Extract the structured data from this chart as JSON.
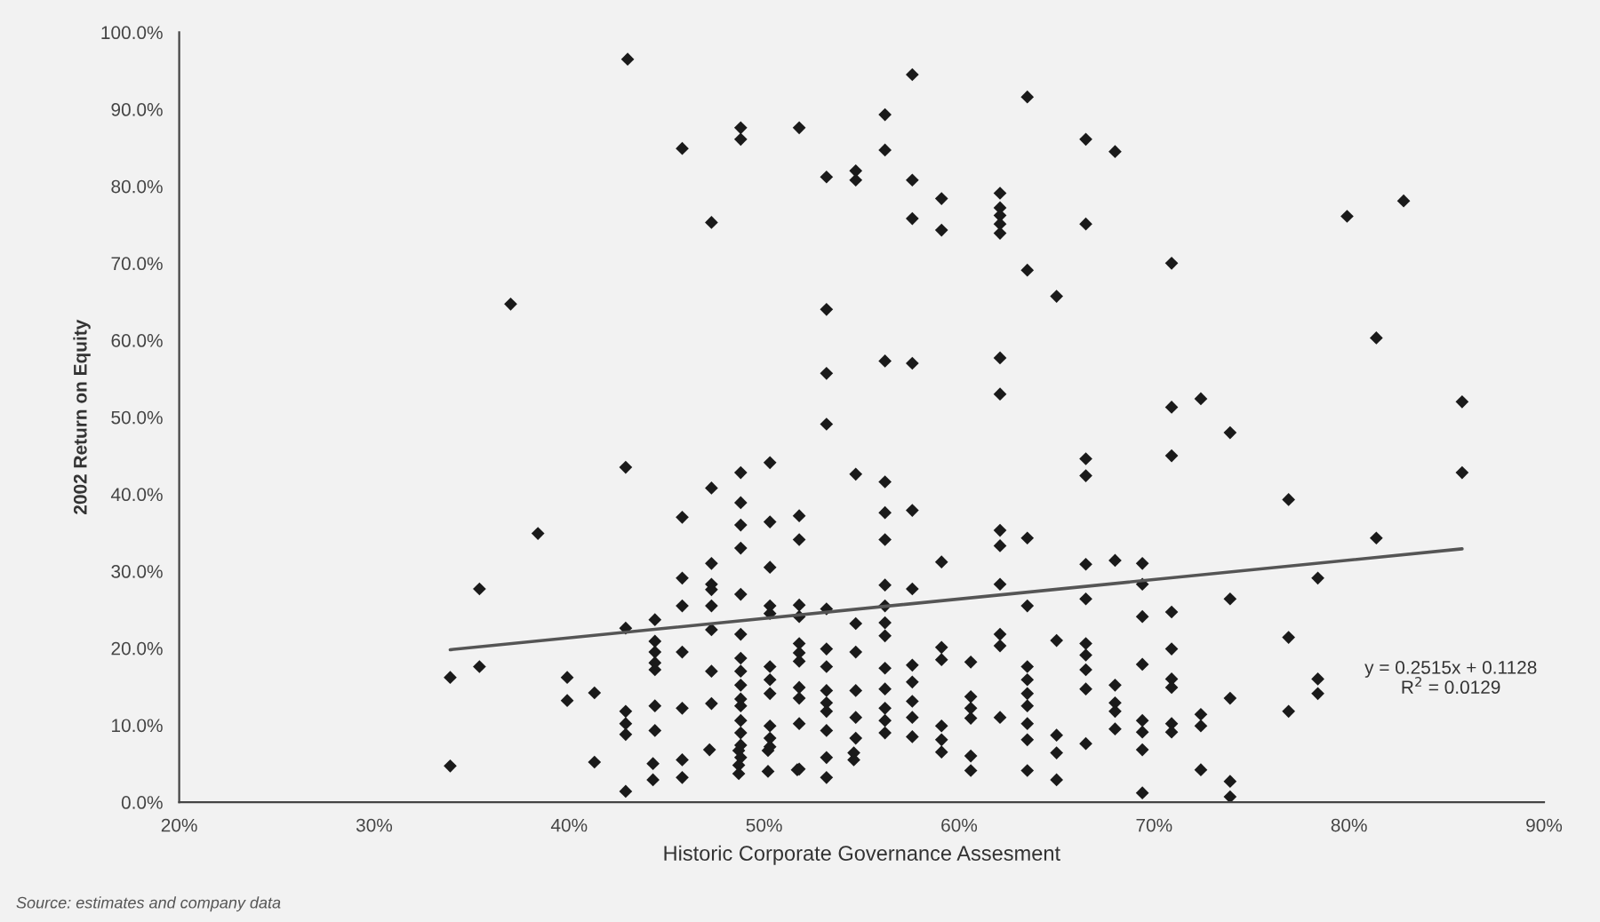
{
  "chart_data": {
    "type": "scatter",
    "xlabel": "Historic Corporate Governance Assesment",
    "ylabel": "2002 Return on Equity",
    "annotations": [
      "y = 0.2515x + 0.1128\nR$^{2}$ = 0.0129",
      "Source: estimates and company data"
    ],
    "xlim": [
      20,
      90
    ],
    "ylim": [
      0,
      100
    ],
    "xticks": [
      {
        "value": 20,
        "label": "20%"
      },
      {
        "value": 30,
        "label": "30%"
      },
      {
        "value": 40,
        "label": "40%"
      },
      {
        "value": 50,
        "label": "50%"
      },
      {
        "value": 60,
        "label": "60%"
      },
      {
        "value": 70,
        "label": "70%"
      },
      {
        "value": 80,
        "label": "80%"
      },
      {
        "value": 90,
        "label": "90%"
      }
    ],
    "yticks": [
      {
        "value": 0,
        "label": "0.0%"
      },
      {
        "value": 10,
        "label": "10.0%"
      },
      {
        "value": 20,
        "label": "20.0%"
      },
      {
        "value": 30,
        "label": "30.0%"
      },
      {
        "value": 40,
        "label": "40.0%"
      },
      {
        "value": 50,
        "label": "50.0%"
      },
      {
        "value": 60,
        "label": "60.0%"
      },
      {
        "value": 70,
        "label": "70.0%"
      },
      {
        "value": 80,
        "label": "80.0%"
      },
      {
        "value": 90,
        "label": "90.0%"
      },
      {
        "value": 100,
        "label": "100.0%"
      }
    ],
    "grid": false,
    "legend": false,
    "series": [
      {
        "color": "#1a1a1a",
        "marker": "diamond",
        "x": [
          43.0,
          37.0,
          42.9,
          38.4,
          35.4,
          42.9,
          33.9,
          35.4,
          39.9,
          39.9,
          41.3,
          42.9,
          42.9,
          42.9,
          33.9,
          41.3,
          42.9,
          44.3,
          44.3,
          45.8,
          45.8,
          47.2,
          48.7,
          48.7,
          48.7,
          50.2,
          50.2,
          51.7,
          53.2,
          53.2,
          54.6,
          54.6,
          44.4,
          44.4,
          44.4,
          44.4,
          44.4,
          44.4,
          44.4,
          45.8,
          45.8,
          45.8,
          45.8,
          45.8,
          45.8,
          47.3,
          47.3,
          47.3,
          47.3,
          47.3,
          47.3,
          47.3,
          47.3,
          47.3,
          48.8,
          48.8,
          48.8,
          48.8,
          48.8,
          48.8,
          48.8,
          48.8,
          48.8,
          48.8,
          48.8,
          48.8,
          48.8,
          48.8,
          48.8,
          48.8,
          48.8,
          50.3,
          50.3,
          50.3,
          50.3,
          50.3,
          50.3,
          50.3,
          50.3,
          50.3,
          50.3,
          50.3,
          51.8,
          51.8,
          51.8,
          51.8,
          51.8,
          51.8,
          51.8,
          51.8,
          51.8,
          51.8,
          51.8,
          51.8,
          53.2,
          53.2,
          53.2,
          53.2,
          53.2,
          53.2,
          53.2,
          53.2,
          53.2,
          53.2,
          53.2,
          54.7,
          54.7,
          54.7,
          54.7,
          54.7,
          54.7,
          54.7,
          54.7,
          56.2,
          56.2,
          56.2,
          56.2,
          56.2,
          56.2,
          56.2,
          56.2,
          56.2,
          56.2,
          56.2,
          56.2,
          56.2,
          56.2,
          56.2,
          57.6,
          57.6,
          57.6,
          57.6,
          57.6,
          57.6,
          57.6,
          57.6,
          57.6,
          57.6,
          57.6,
          59.1,
          59.1,
          59.1,
          59.1,
          59.1,
          59.1,
          59.1,
          59.1,
          60.6,
          60.6,
          60.6,
          60.6,
          60.6,
          60.6,
          62.1,
          62.1,
          62.1,
          62.1,
          62.1,
          62.1,
          62.1,
          62.1,
          62.1,
          62.1,
          62.1,
          62.1,
          62.1,
          63.5,
          63.5,
          63.5,
          63.5,
          63.5,
          63.5,
          63.5,
          63.5,
          63.5,
          63.5,
          63.5,
          65.0,
          65.0,
          65.0,
          65.0,
          65.0,
          66.5,
          66.5,
          66.5,
          66.5,
          66.5,
          66.5,
          66.5,
          66.5,
          66.5,
          66.5,
          66.5,
          68.0,
          68.0,
          68.0,
          68.0,
          68.0,
          68.0,
          69.4,
          69.4,
          69.4,
          69.4,
          69.4,
          69.4,
          69.4,
          69.4,
          70.9,
          70.9,
          70.9,
          70.9,
          70.9,
          70.9,
          70.9,
          70.9,
          70.9,
          72.4,
          72.4,
          72.4,
          72.4,
          73.9,
          73.9,
          73.9,
          73.9,
          73.9,
          76.9,
          76.9,
          76.9,
          78.4,
          78.4,
          78.4,
          79.9,
          81.4,
          81.4,
          82.8,
          85.8,
          85.8
        ],
        "values": [
          96.5,
          64.7,
          43.5,
          34.9,
          27.7,
          22.6,
          16.2,
          17.6,
          16.2,
          13.2,
          14.2,
          11.8,
          10.2,
          8.8,
          4.7,
          5.2,
          1.4,
          5.0,
          2.9,
          5.5,
          3.2,
          6.8,
          6.7,
          4.8,
          3.7,
          6.7,
          4.0,
          4.2,
          5.8,
          3.2,
          6.4,
          5.5,
          23.7,
          20.9,
          19.5,
          18.1,
          17.2,
          12.5,
          9.3,
          84.9,
          37.0,
          29.1,
          25.5,
          19.5,
          12.2,
          75.3,
          40.8,
          31.0,
          28.3,
          27.6,
          25.5,
          22.4,
          17.0,
          12.8,
          87.6,
          86.1,
          42.8,
          38.9,
          36.0,
          33.0,
          27.0,
          21.8,
          18.7,
          17.0,
          15.2,
          13.4,
          12.5,
          10.6,
          9.0,
          7.4,
          5.8,
          44.1,
          36.4,
          30.5,
          25.5,
          24.5,
          17.6,
          15.9,
          14.1,
          9.9,
          8.3,
          7.2,
          87.6,
          37.2,
          34.1,
          25.6,
          24.1,
          20.6,
          19.4,
          18.3,
          14.9,
          13.5,
          10.2,
          4.3,
          81.2,
          64.0,
          55.7,
          49.1,
          25.1,
          19.9,
          17.6,
          14.5,
          12.9,
          11.8,
          9.3,
          82.0,
          80.8,
          42.6,
          23.2,
          19.5,
          14.5,
          11.0,
          8.3,
          89.3,
          84.7,
          57.3,
          41.6,
          37.6,
          34.1,
          28.2,
          25.5,
          23.3,
          21.6,
          17.4,
          14.7,
          12.2,
          10.6,
          9.0,
          94.5,
          80.8,
          75.8,
          57.0,
          37.9,
          27.7,
          17.8,
          15.6,
          13.1,
          11.0,
          8.5,
          78.4,
          74.3,
          31.2,
          20.1,
          18.5,
          9.9,
          8.1,
          6.5,
          18.2,
          13.7,
          12.2,
          10.9,
          6.0,
          4.1,
          79.1,
          77.2,
          76.2,
          75.1,
          73.9,
          57.7,
          53.0,
          35.3,
          33.3,
          28.3,
          21.8,
          20.3,
          11.0,
          91.6,
          69.1,
          34.3,
          25.5,
          17.6,
          15.9,
          14.1,
          12.5,
          10.2,
          8.1,
          4.1,
          65.7,
          21.0,
          8.7,
          6.4,
          2.9,
          86.1,
          75.1,
          44.6,
          42.4,
          30.9,
          26.4,
          20.6,
          19.1,
          17.2,
          14.7,
          7.6,
          84.5,
          31.4,
          15.2,
          12.9,
          11.8,
          9.5,
          31.0,
          28.3,
          24.1,
          17.9,
          10.6,
          9.1,
          6.8,
          1.2,
          70.0,
          51.3,
          45.0,
          24.7,
          19.9,
          16.0,
          14.9,
          10.2,
          9.1,
          52.4,
          11.4,
          9.9,
          4.2,
          48.0,
          26.4,
          13.5,
          2.7,
          0.7,
          39.3,
          21.4,
          11.8,
          29.1,
          16.0,
          14.1,
          76.1,
          60.3,
          34.3,
          78.1,
          52.0,
          42.8
        ]
      },
      {
        "type": "line",
        "marker": "none",
        "color": "#555555",
        "x": [
          33.9,
          85.8
        ],
        "values": [
          19.8,
          32.9
        ]
      }
    ]
  }
}
